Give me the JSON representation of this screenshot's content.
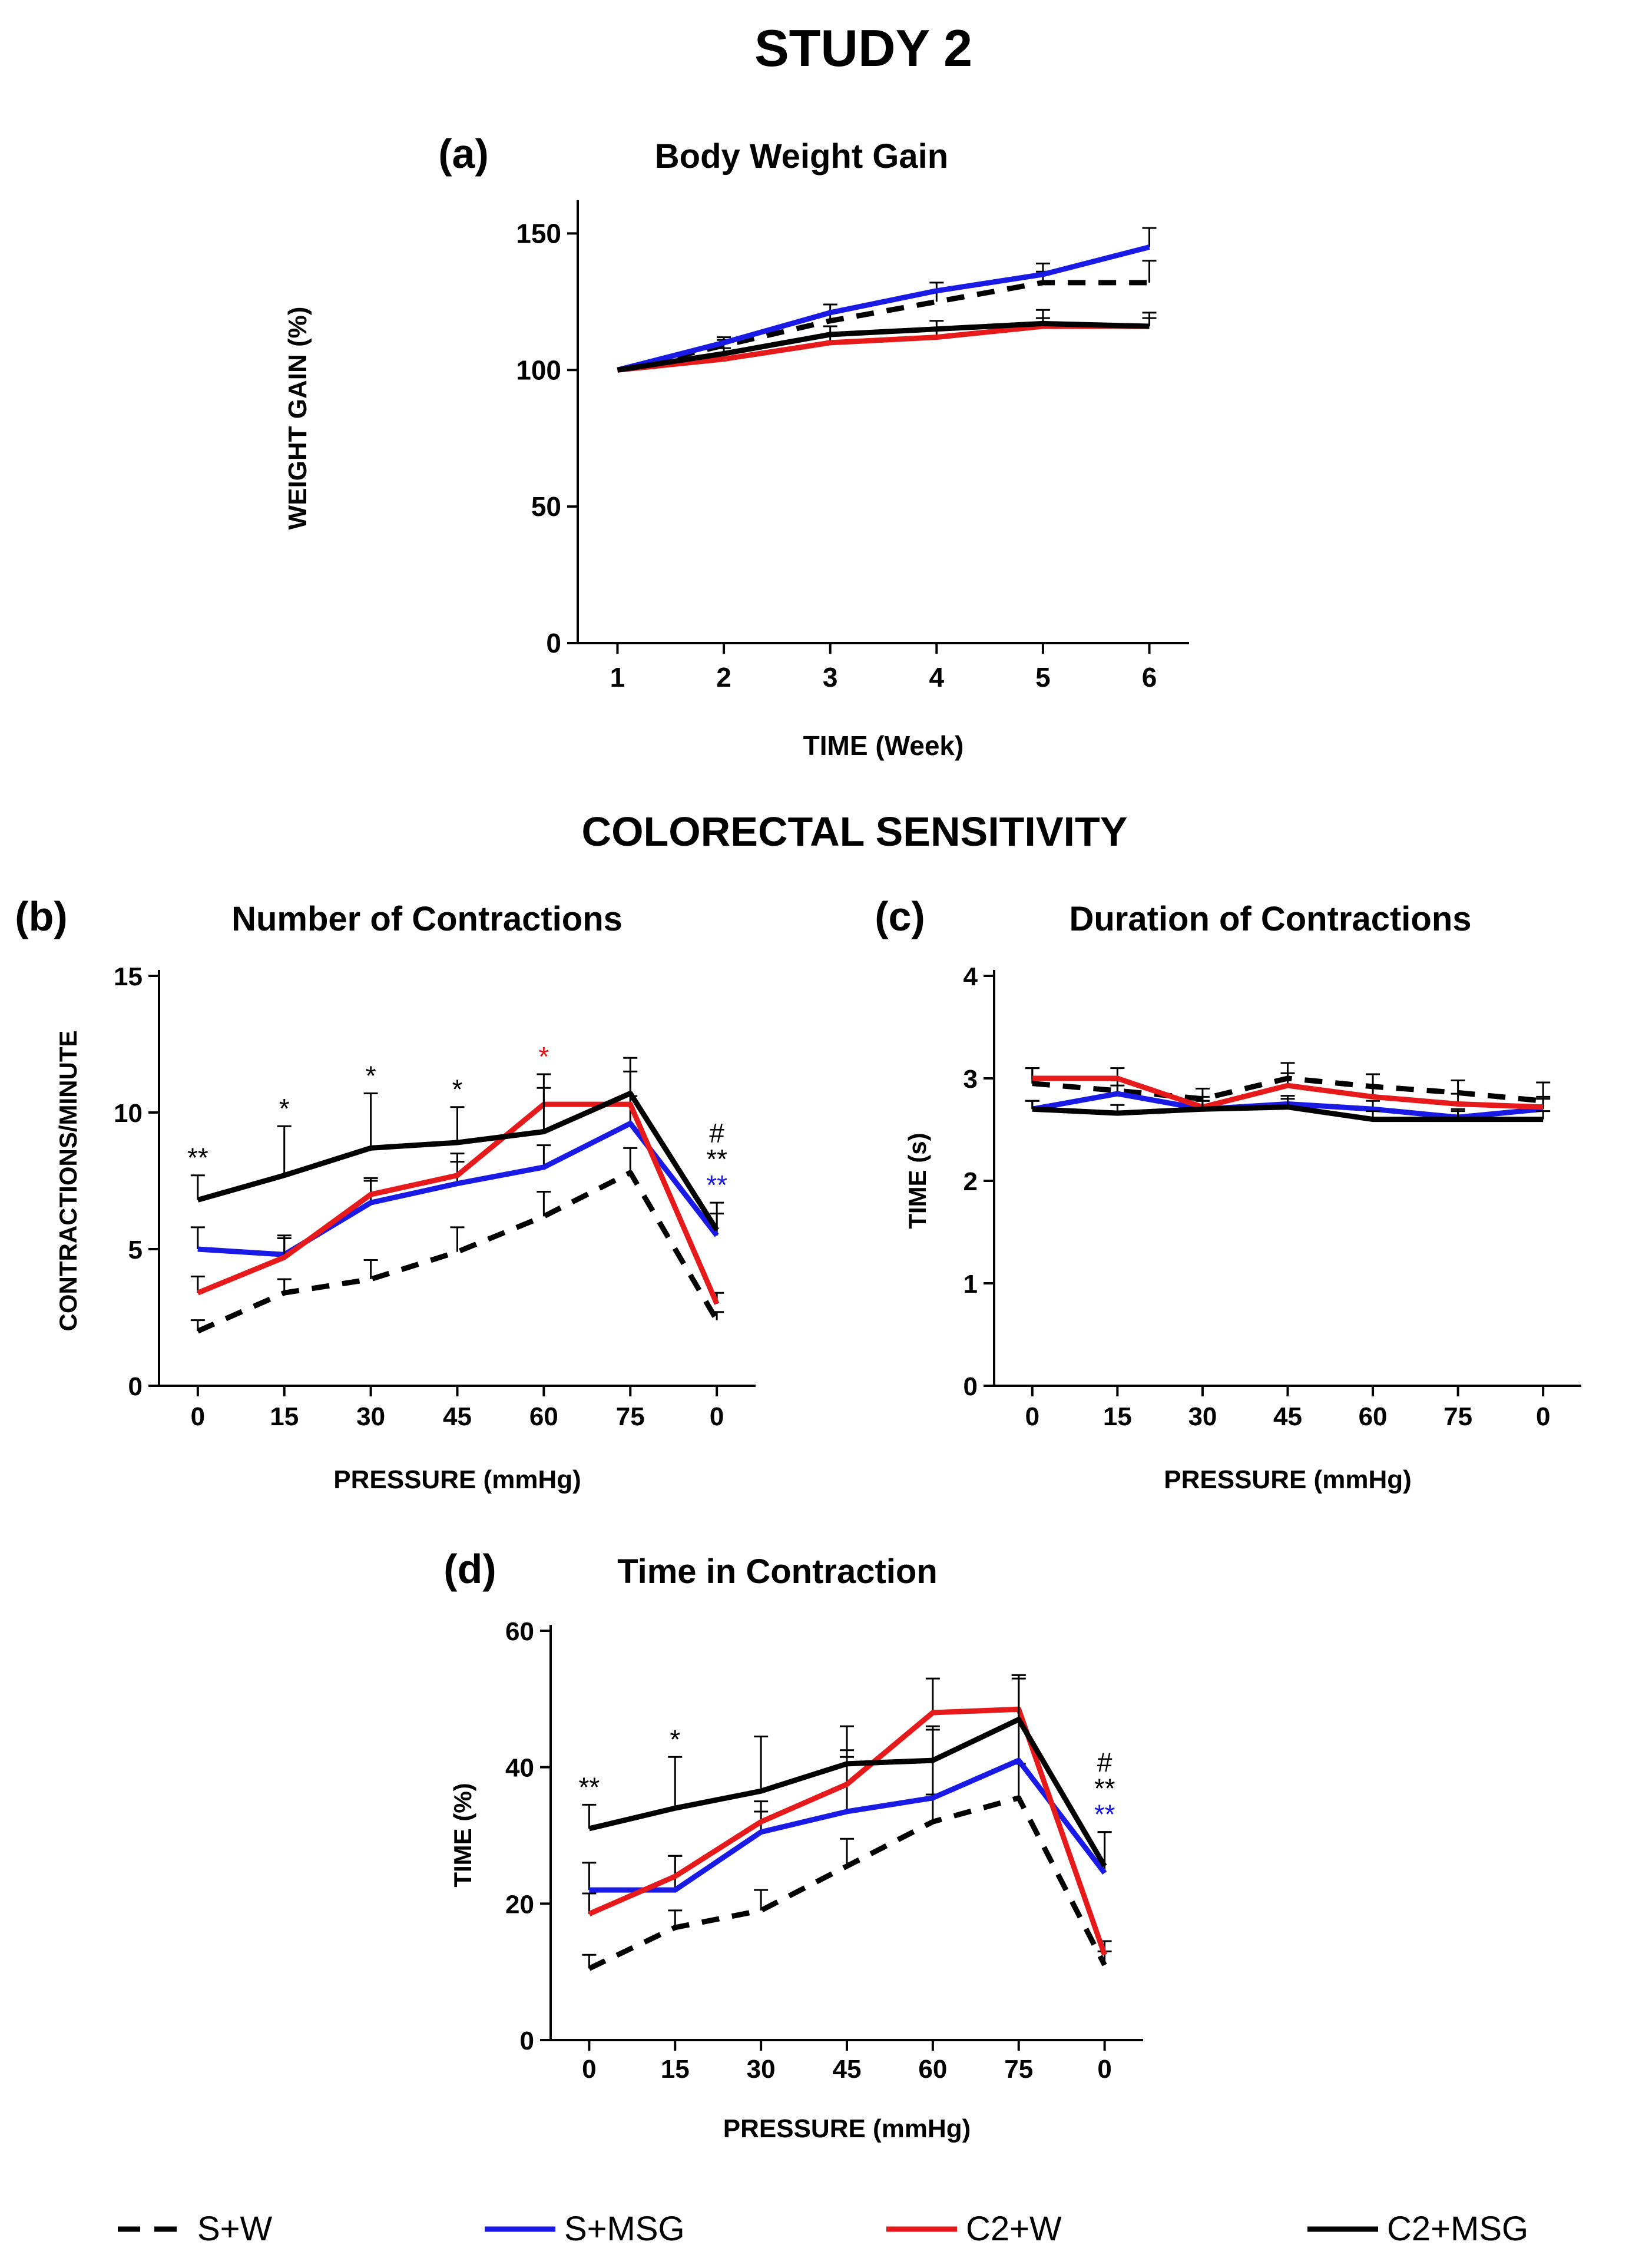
{
  "figure": {
    "title": "STUDY 2",
    "section_title": "COLORECTAL SENSITIVITY"
  },
  "legend": [
    {
      "name": "S+W",
      "color": "#000000",
      "dashed": true
    },
    {
      "name": "S+MSG",
      "color": "#1a1ae6",
      "dashed": false
    },
    {
      "name": "C2+W",
      "color": "#e61a1a",
      "dashed": false
    },
    {
      "name": "C2+MSG",
      "color": "#000000",
      "dashed": false
    }
  ],
  "chart_data": [
    {
      "panel": "(a)",
      "type": "line",
      "title": "Body Weight Gain",
      "xlabel": "TIME (Week)",
      "ylabel": "WEIGHT GAIN (%)",
      "categories": [
        "1",
        "2",
        "3",
        "4",
        "5",
        "6"
      ],
      "ylim": [
        0,
        160
      ],
      "yticks": [
        0,
        50,
        100,
        150
      ],
      "series": [
        {
          "name": "S+W",
          "values": [
            100,
            109,
            118,
            125,
            132,
            132
          ],
          "err": [
            0,
            2,
            3,
            4,
            4,
            8
          ]
        },
        {
          "name": "S+MSG",
          "values": [
            100,
            110,
            121,
            129,
            135,
            145
          ],
          "err": [
            0,
            2,
            3,
            3,
            4,
            7
          ]
        },
        {
          "name": "C2+W",
          "values": [
            100,
            104,
            110,
            112,
            116,
            116
          ],
          "err": [
            0,
            2,
            3,
            3,
            3,
            3
          ]
        },
        {
          "name": "C2+MSG",
          "values": [
            100,
            106,
            113,
            115,
            117,
            116
          ],
          "err": [
            0,
            2,
            3,
            3,
            5,
            5
          ]
        }
      ],
      "annotations": []
    },
    {
      "panel": "(b)",
      "type": "line",
      "title": "Number of Contractions",
      "xlabel": "PRESSURE (mmHg)",
      "ylabel": "CONTRACTIONS/MINUTE",
      "categories": [
        "0",
        "15",
        "30",
        "45",
        "60",
        "75",
        "0"
      ],
      "ylim": [
        0,
        15
      ],
      "yticks": [
        0,
        5,
        10,
        15
      ],
      "series": [
        {
          "name": "S+W",
          "values": [
            2.0,
            3.4,
            3.9,
            4.9,
            6.2,
            7.8,
            2.4
          ],
          "err": [
            0.4,
            0.5,
            0.7,
            0.9,
            0.9,
            0.9,
            0.3
          ]
        },
        {
          "name": "S+MSG",
          "values": [
            5.0,
            4.8,
            6.7,
            7.4,
            8.0,
            9.6,
            5.5
          ],
          "err": [
            0.8,
            0.7,
            0.8,
            0.8,
            0.8,
            1.0,
            0.8
          ]
        },
        {
          "name": "C2+W",
          "values": [
            3.4,
            4.7,
            7.0,
            7.7,
            10.3,
            10.3,
            3.0
          ],
          "err": [
            0.6,
            0.7,
            0.6,
            0.8,
            1.1,
            1.2,
            0.4
          ]
        },
        {
          "name": "C2+MSG",
          "values": [
            6.8,
            7.7,
            8.7,
            8.9,
            9.3,
            10.7,
            5.7
          ],
          "err": [
            0.9,
            1.8,
            2.0,
            1.3,
            1.6,
            1.3,
            1.0
          ]
        }
      ],
      "annotations": [
        {
          "index": 0,
          "lines": [
            {
              "text": "**",
              "color": "#000000"
            }
          ]
        },
        {
          "index": 1,
          "lines": [
            {
              "text": "*",
              "color": "#000000"
            }
          ]
        },
        {
          "index": 2,
          "lines": [
            {
              "text": "*",
              "color": "#000000"
            }
          ]
        },
        {
          "index": 3,
          "lines": [
            {
              "text": "*",
              "color": "#000000"
            }
          ]
        },
        {
          "index": 4,
          "lines": [
            {
              "text": "*",
              "color": "#e61a1a"
            }
          ]
        },
        {
          "index": 6,
          "lines": [
            {
              "text": "#",
              "color": "#000000"
            },
            {
              "text": "**",
              "color": "#000000"
            },
            {
              "text": "**",
              "color": "#1a1ae6"
            }
          ]
        }
      ]
    },
    {
      "panel": "(c)",
      "type": "line",
      "title": "Duration of Contractions",
      "xlabel": "PRESSURE (mmHg)",
      "ylabel": "TIME (s)",
      "categories": [
        "0",
        "15",
        "30",
        "45",
        "60",
        "75",
        "0"
      ],
      "ylim": [
        0,
        4
      ],
      "yticks": [
        0,
        1,
        2,
        3,
        4
      ],
      "series": [
        {
          "name": "S+W",
          "values": [
            2.95,
            2.88,
            2.8,
            3.0,
            2.92,
            2.86,
            2.78
          ],
          "err": [
            0.15,
            0.1,
            0.1,
            0.15,
            0.12,
            0.12,
            0.18
          ]
        },
        {
          "name": "S+MSG",
          "values": [
            2.7,
            2.85,
            2.7,
            2.75,
            2.7,
            2.62,
            2.7
          ],
          "err": [
            0.08,
            0.08,
            0.08,
            0.08,
            0.08,
            0.08,
            0.1
          ]
        },
        {
          "name": "C2+W",
          "values": [
            3.0,
            3.0,
            2.72,
            2.93,
            2.82,
            2.75,
            2.72
          ],
          "err": [
            0.1,
            0.1,
            0.1,
            0.12,
            0.1,
            0.1,
            0.1
          ]
        },
        {
          "name": "C2+MSG",
          "values": [
            2.7,
            2.66,
            2.7,
            2.72,
            2.6,
            2.6,
            2.6
          ],
          "err": [
            0.08,
            0.08,
            0.08,
            0.08,
            0.08,
            0.08,
            0.08
          ]
        }
      ],
      "annotations": []
    },
    {
      "panel": "(d)",
      "type": "line",
      "title": "Time in Contraction",
      "xlabel": "PRESSURE (mmHg)",
      "ylabel": "TIME (%)",
      "categories": [
        "0",
        "15",
        "30",
        "45",
        "60",
        "75",
        "0"
      ],
      "ylim": [
        0,
        60
      ],
      "yticks": [
        0,
        20,
        40,
        60
      ],
      "series": [
        {
          "name": "S+W",
          "values": [
            10.5,
            16.5,
            19,
            25.5,
            32,
            35.5,
            11
          ],
          "err": [
            2,
            2.5,
            3,
            4,
            4,
            5,
            2
          ]
        },
        {
          "name": "S+MSG",
          "values": [
            22,
            22,
            30.5,
            33.5,
            35.5,
            41,
            24.5
          ],
          "err": [
            4,
            5,
            3,
            8,
            10,
            12,
            6
          ]
        },
        {
          "name": "C2+W",
          "values": [
            18.5,
            24,
            32,
            37.5,
            48,
            48.5,
            12.5
          ],
          "err": [
            3,
            3,
            3,
            5,
            5,
            5,
            2
          ]
        },
        {
          "name": "C2+MSG",
          "values": [
            31,
            34,
            36.5,
            40.5,
            41,
            47,
            25.5
          ],
          "err": [
            3.5,
            7.5,
            8,
            5.5,
            5,
            6.5,
            5
          ]
        }
      ],
      "annotations": [
        {
          "index": 0,
          "lines": [
            {
              "text": "**",
              "color": "#000000"
            }
          ]
        },
        {
          "index": 1,
          "lines": [
            {
              "text": "*",
              "color": "#000000"
            }
          ]
        },
        {
          "index": 6,
          "lines": [
            {
              "text": "#",
              "color": "#000000"
            },
            {
              "text": "**",
              "color": "#000000"
            },
            {
              "text": "**",
              "color": "#1a1ae6"
            }
          ]
        }
      ]
    }
  ]
}
